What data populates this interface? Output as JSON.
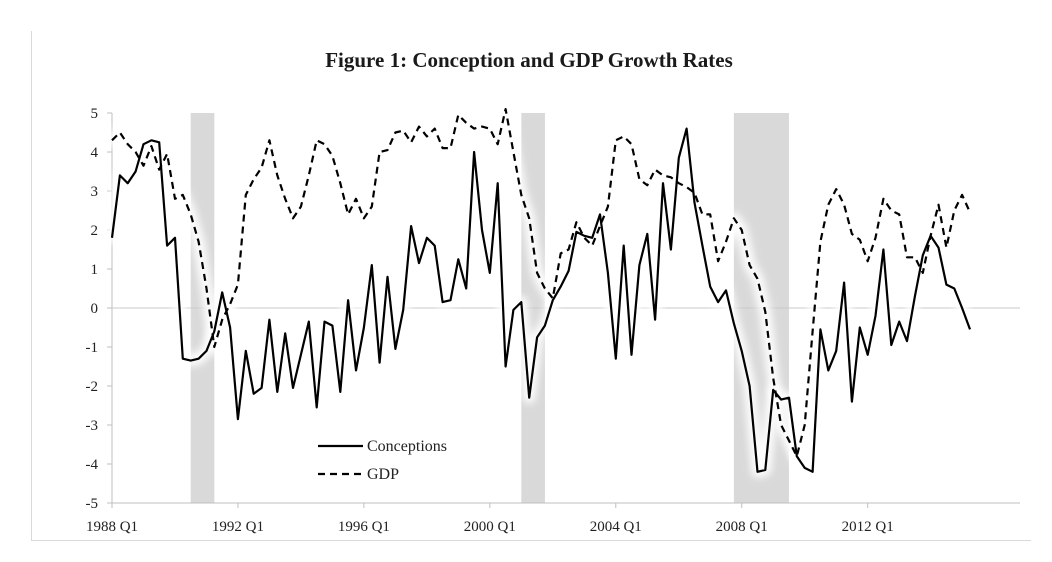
{
  "chart_data": {
    "type": "line",
    "title": "Figure 1: Conception and GDP Growth Rates",
    "xlabel": "",
    "ylabel": "",
    "ylim": [
      -5,
      5
    ],
    "yticks": [
      5,
      4,
      3,
      2,
      1,
      0,
      -1,
      -2,
      -3,
      -4,
      -5
    ],
    "x_tick_labels": [
      "1988 Q1",
      "1992 Q1",
      "1996 Q1",
      "2000 Q1",
      "2004 Q1",
      "2008 Q1",
      "2012 Q1"
    ],
    "x_tick_years": [
      1988,
      1992,
      1996,
      2000,
      2004,
      2008,
      2012
    ],
    "recessions": [
      {
        "start": 1990.5,
        "end": 1991.25
      },
      {
        "start": 2001.0,
        "end": 2001.75
      },
      {
        "start": 2007.75,
        "end": 2009.5
      }
    ],
    "legend": [
      {
        "name": "Conceptions",
        "style": "solid"
      },
      {
        "name": "GDP",
        "style": "dashed"
      }
    ],
    "colors": {
      "lines": "#000000",
      "recession": "#d9d9d9",
      "zero_line": "#c8c8c8",
      "glow": "#ffffff"
    },
    "series": [
      {
        "name": "Conceptions",
        "style": "solid",
        "points": [
          [
            1988.0,
            1.8
          ],
          [
            1988.25,
            3.4
          ],
          [
            1988.5,
            3.2
          ],
          [
            1988.75,
            3.5
          ],
          [
            1989.0,
            4.2
          ],
          [
            1989.25,
            4.3
          ],
          [
            1989.5,
            4.25
          ],
          [
            1989.75,
            1.6
          ],
          [
            1990.0,
            1.8
          ],
          [
            1990.25,
            -1.3
          ],
          [
            1990.5,
            -1.35
          ],
          [
            1990.75,
            -1.3
          ],
          [
            1991.0,
            -1.1
          ],
          [
            1991.25,
            -0.6
          ],
          [
            1991.5,
            0.4
          ],
          [
            1991.75,
            -0.5
          ],
          [
            1992.0,
            -2.85
          ],
          [
            1992.25,
            -1.1
          ],
          [
            1992.5,
            -2.2
          ],
          [
            1992.75,
            -2.05
          ],
          [
            1993.0,
            -0.3
          ],
          [
            1993.25,
            -2.15
          ],
          [
            1993.5,
            -0.65
          ],
          [
            1993.75,
            -2.05
          ],
          [
            1994.0,
            -1.2
          ],
          [
            1994.25,
            -0.35
          ],
          [
            1994.5,
            -2.55
          ],
          [
            1994.75,
            -0.35
          ],
          [
            1995.0,
            -0.45
          ],
          [
            1995.25,
            -2.15
          ],
          [
            1995.5,
            0.2
          ],
          [
            1995.75,
            -1.6
          ],
          [
            1996.0,
            -0.5
          ],
          [
            1996.25,
            1.1
          ],
          [
            1996.5,
            -1.4
          ],
          [
            1996.75,
            0.8
          ],
          [
            1997.0,
            -1.05
          ],
          [
            1997.25,
            -0.05
          ],
          [
            1997.5,
            2.1
          ],
          [
            1997.75,
            1.15
          ],
          [
            1998.0,
            1.8
          ],
          [
            1998.25,
            1.6
          ],
          [
            1998.5,
            0.15
          ],
          [
            1998.75,
            0.2
          ],
          [
            1999.0,
            1.25
          ],
          [
            1999.25,
            0.5
          ],
          [
            1999.5,
            4.0
          ],
          [
            1999.75,
            2.0
          ],
          [
            2000.0,
            0.9
          ],
          [
            2000.25,
            3.2
          ],
          [
            2000.5,
            -1.5
          ],
          [
            2000.75,
            -0.05
          ],
          [
            2001.0,
            0.15
          ],
          [
            2001.25,
            -2.3
          ],
          [
            2001.5,
            -0.75
          ],
          [
            2001.75,
            -0.45
          ],
          [
            2002.0,
            0.2
          ],
          [
            2002.25,
            0.55
          ],
          [
            2002.5,
            0.95
          ],
          [
            2002.75,
            1.95
          ],
          [
            2003.0,
            1.85
          ],
          [
            2003.25,
            1.8
          ],
          [
            2003.5,
            2.4
          ],
          [
            2003.75,
            0.9
          ],
          [
            2004.0,
            -1.3
          ],
          [
            2004.25,
            1.6
          ],
          [
            2004.5,
            -1.2
          ],
          [
            2004.75,
            1.1
          ],
          [
            2005.0,
            1.9
          ],
          [
            2005.25,
            -0.3
          ],
          [
            2005.5,
            3.2
          ],
          [
            2005.75,
            1.5
          ],
          [
            2006.0,
            3.85
          ],
          [
            2006.25,
            4.6
          ],
          [
            2006.5,
            2.7
          ],
          [
            2006.75,
            1.6
          ],
          [
            2007.0,
            0.55
          ],
          [
            2007.25,
            0.15
          ],
          [
            2007.5,
            0.45
          ],
          [
            2007.75,
            -0.4
          ],
          [
            2008.0,
            -1.1
          ],
          [
            2008.25,
            -2.0
          ],
          [
            2008.5,
            -4.2
          ],
          [
            2008.75,
            -4.15
          ],
          [
            2009.0,
            -2.1
          ],
          [
            2009.25,
            -2.35
          ],
          [
            2009.5,
            -2.3
          ],
          [
            2009.75,
            -3.8
          ],
          [
            2010.0,
            -4.1
          ],
          [
            2010.25,
            -4.2
          ],
          [
            2010.5,
            -0.55
          ],
          [
            2010.75,
            -1.6
          ],
          [
            2011.0,
            -1.1
          ],
          [
            2011.25,
            0.65
          ],
          [
            2011.5,
            -2.4
          ],
          [
            2011.75,
            -0.5
          ],
          [
            2012.0,
            -1.2
          ],
          [
            2012.25,
            -0.2
          ],
          [
            2012.5,
            1.5
          ],
          [
            2012.75,
            -0.95
          ],
          [
            2013.0,
            -0.35
          ],
          [
            2013.25,
            -0.85
          ],
          [
            2013.5,
            0.3
          ],
          [
            2013.75,
            1.35
          ],
          [
            2014.0,
            1.85
          ],
          [
            2014.25,
            1.55
          ],
          [
            2014.5,
            0.6
          ],
          [
            2014.75,
            0.5
          ],
          [
            2015.0,
            0.0
          ],
          [
            2015.25,
            -0.55
          ]
        ]
      },
      {
        "name": "GDP",
        "style": "dashed",
        "points": [
          [
            1988.0,
            4.3
          ],
          [
            1988.25,
            4.5
          ],
          [
            1988.5,
            4.2
          ],
          [
            1988.75,
            4.0
          ],
          [
            1989.0,
            3.65
          ],
          [
            1989.25,
            4.15
          ],
          [
            1989.5,
            3.55
          ],
          [
            1989.75,
            3.95
          ],
          [
            1990.0,
            2.8
          ],
          [
            1990.25,
            2.9
          ],
          [
            1990.5,
            2.4
          ],
          [
            1990.75,
            1.7
          ],
          [
            1991.0,
            0.5
          ],
          [
            1991.25,
            -1.0
          ],
          [
            1991.5,
            -0.3
          ],
          [
            1991.75,
            0.1
          ],
          [
            1992.0,
            0.6
          ],
          [
            1992.25,
            2.9
          ],
          [
            1992.5,
            3.3
          ],
          [
            1992.75,
            3.6
          ],
          [
            1993.0,
            4.3
          ],
          [
            1993.25,
            3.4
          ],
          [
            1993.5,
            2.8
          ],
          [
            1993.75,
            2.3
          ],
          [
            1994.0,
            2.6
          ],
          [
            1994.25,
            3.4
          ],
          [
            1994.5,
            4.3
          ],
          [
            1994.75,
            4.2
          ],
          [
            1995.0,
            3.9
          ],
          [
            1995.25,
            3.2
          ],
          [
            1995.5,
            2.4
          ],
          [
            1995.75,
            2.8
          ],
          [
            1996.0,
            2.3
          ],
          [
            1996.25,
            2.6
          ],
          [
            1996.5,
            4.0
          ],
          [
            1996.75,
            4.05
          ],
          [
            1997.0,
            4.5
          ],
          [
            1997.25,
            4.55
          ],
          [
            1997.5,
            4.25
          ],
          [
            1997.75,
            4.65
          ],
          [
            1998.0,
            4.4
          ],
          [
            1998.25,
            4.6
          ],
          [
            1998.5,
            4.1
          ],
          [
            1998.75,
            4.1
          ],
          [
            1999.0,
            4.95
          ],
          [
            1999.25,
            4.75
          ],
          [
            1999.5,
            4.6
          ],
          [
            1999.75,
            4.65
          ],
          [
            2000.0,
            4.6
          ],
          [
            2000.25,
            4.2
          ],
          [
            2000.5,
            5.1
          ],
          [
            2000.75,
            4.0
          ],
          [
            2001.0,
            2.9
          ],
          [
            2001.25,
            2.3
          ],
          [
            2001.5,
            0.9
          ],
          [
            2001.75,
            0.5
          ],
          [
            2002.0,
            0.25
          ],
          [
            2002.25,
            1.4
          ],
          [
            2002.5,
            1.5
          ],
          [
            2002.75,
            2.2
          ],
          [
            2003.0,
            1.8
          ],
          [
            2003.25,
            1.6
          ],
          [
            2003.5,
            2.1
          ],
          [
            2003.75,
            2.6
          ],
          [
            2004.0,
            4.3
          ],
          [
            2004.25,
            4.4
          ],
          [
            2004.5,
            4.2
          ],
          [
            2004.75,
            3.3
          ],
          [
            2005.0,
            3.15
          ],
          [
            2005.25,
            3.55
          ],
          [
            2005.5,
            3.4
          ],
          [
            2005.75,
            3.35
          ],
          [
            2006.0,
            3.2
          ],
          [
            2006.25,
            3.1
          ],
          [
            2006.5,
            2.95
          ],
          [
            2006.75,
            2.4
          ],
          [
            2007.0,
            2.4
          ],
          [
            2007.25,
            1.2
          ],
          [
            2007.5,
            1.7
          ],
          [
            2007.75,
            2.3
          ],
          [
            2008.0,
            2.0
          ],
          [
            2008.25,
            1.1
          ],
          [
            2008.5,
            0.75
          ],
          [
            2008.75,
            -0.1
          ],
          [
            2009.0,
            -1.8
          ],
          [
            2009.25,
            -3.0
          ],
          [
            2009.5,
            -3.4
          ],
          [
            2009.75,
            -3.8
          ],
          [
            2010.0,
            -3.0
          ],
          [
            2010.25,
            -0.6
          ],
          [
            2010.5,
            1.7
          ],
          [
            2010.75,
            2.65
          ],
          [
            2011.0,
            3.05
          ],
          [
            2011.25,
            2.65
          ],
          [
            2011.5,
            1.9
          ],
          [
            2011.75,
            1.75
          ],
          [
            2012.0,
            1.2
          ],
          [
            2012.25,
            1.8
          ],
          [
            2012.5,
            2.8
          ],
          [
            2012.75,
            2.5
          ],
          [
            2013.0,
            2.4
          ],
          [
            2013.25,
            1.3
          ],
          [
            2013.5,
            1.3
          ],
          [
            2013.75,
            0.9
          ],
          [
            2014.0,
            1.85
          ],
          [
            2014.25,
            2.65
          ],
          [
            2014.5,
            1.55
          ],
          [
            2014.75,
            2.5
          ],
          [
            2015.0,
            2.9
          ],
          [
            2015.25,
            2.45
          ]
        ]
      }
    ]
  }
}
